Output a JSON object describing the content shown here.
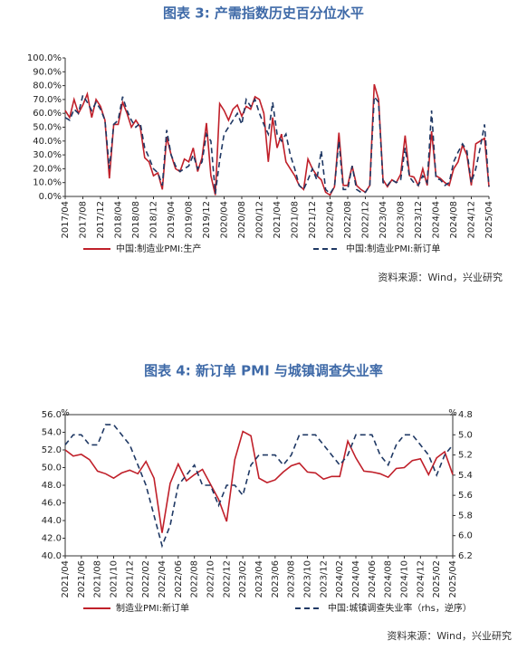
{
  "chart_data": [
    {
      "type": "line",
      "title": "图表 3:    产需指数历史百分位水平",
      "source": "资料来源：Wind，兴业研究",
      "legend": "bottom",
      "grid": false,
      "categories": [
        "2017/04",
        null,
        null,
        null,
        "2017/08",
        null,
        null,
        null,
        "2017/12",
        null,
        null,
        null,
        "2018/04",
        null,
        null,
        null,
        "2018/08",
        null,
        null,
        null,
        "2018/12",
        null,
        null,
        null,
        "2019/04",
        null,
        null,
        null,
        "2019/08",
        null,
        null,
        null,
        "2019/12",
        null,
        null,
        null,
        "2020/04",
        null,
        null,
        null,
        "2020/08",
        null,
        null,
        null,
        "2020/12",
        null,
        null,
        null,
        "2021/04",
        null,
        null,
        null,
        "2021/08",
        null,
        null,
        null,
        "2021/12",
        null,
        null,
        null,
        "2022/04",
        null,
        null,
        null,
        "2022/08",
        null,
        null,
        null,
        "2022/12",
        null,
        null,
        null,
        "2023/04",
        null,
        null,
        null,
        "2023/08",
        null,
        null,
        null,
        "2023/12",
        null,
        null,
        null,
        "2024/04",
        null,
        null,
        null,
        "2024/08",
        null,
        null,
        null,
        "2024/12",
        null,
        null,
        null,
        "2025/04"
      ],
      "ylim": [
        0,
        100
      ],
      "yticks": [
        {
          "value": 0,
          "label": "0.0%"
        },
        {
          "value": 10,
          "label": "10.0%"
        },
        {
          "value": 20,
          "label": "20.0%"
        },
        {
          "value": 30,
          "label": "30.0%"
        },
        {
          "value": 40,
          "label": "40.0%"
        },
        {
          "value": 50,
          "label": "50.0%"
        },
        {
          "value": 60,
          "label": "60.0%"
        },
        {
          "value": 70,
          "label": "70.0%"
        },
        {
          "value": 80,
          "label": "80.0%"
        },
        {
          "value": 90,
          "label": "90.0%"
        },
        {
          "value": 100,
          "label": "100.0%"
        }
      ],
      "series": [
        {
          "name": "中国:制造业PMI:生产",
          "color": "#c0202a",
          "dashed": false,
          "values": [
            62,
            57,
            70,
            60,
            66,
            74,
            57,
            70,
            65,
            55,
            13,
            52,
            52,
            68,
            60,
            50,
            55,
            50,
            28,
            25,
            15,
            17,
            5,
            43,
            30,
            20,
            18,
            27,
            25,
            35,
            18,
            28,
            53,
            15,
            1,
            67,
            62,
            55,
            63,
            66,
            58,
            65,
            63,
            72,
            70,
            60,
            25,
            57,
            35,
            45,
            25,
            20,
            15,
            8,
            5,
            27,
            20,
            15,
            12,
            3,
            1,
            7,
            46,
            8,
            8,
            22,
            8,
            5,
            3,
            8,
            81,
            70,
            12,
            7,
            12,
            10,
            16,
            44,
            15,
            14,
            8,
            20,
            8,
            47,
            15,
            13,
            10,
            8,
            20,
            25,
            37,
            30,
            8,
            38,
            40,
            42,
            7
          ]
        },
        {
          "name": "中国:制造业PMI:新订单",
          "color": "#1f3864",
          "dashed": true,
          "values": [
            57,
            55,
            63,
            60,
            73,
            68,
            62,
            68,
            63,
            55,
            20,
            52,
            55,
            72,
            62,
            55,
            50,
            53,
            35,
            28,
            20,
            17,
            8,
            48,
            30,
            22,
            18,
            20,
            22,
            30,
            20,
            25,
            45,
            40,
            2,
            26,
            45,
            50,
            55,
            60,
            52,
            70,
            65,
            70,
            60,
            52,
            45,
            68,
            45,
            40,
            45,
            30,
            20,
            8,
            5,
            12,
            20,
            12,
            33,
            5,
            2,
            7,
            40,
            5,
            5,
            22,
            5,
            3,
            3,
            8,
            72,
            68,
            10,
            8,
            12,
            10,
            12,
            35,
            14,
            10,
            8,
            15,
            10,
            62,
            13,
            12,
            8,
            10,
            25,
            32,
            38,
            33,
            10,
            20,
            35,
            52,
            7
          ]
        }
      ]
    },
    {
      "type": "line",
      "title": "图表 4:    新订单 PMI 与城镇调查失业率",
      "source": "资料来源：Wind，兴业研究",
      "legend": "bottom",
      "grid": false,
      "annotations": [
        "%",
        "%"
      ],
      "categories": [
        "2021/04",
        null,
        "2021/06",
        null,
        "2021/08",
        null,
        "2021/10",
        null,
        "2021/12",
        null,
        "2022/02",
        null,
        "2022/04",
        null,
        "2022/06",
        null,
        "2022/08",
        null,
        "2022/10",
        null,
        "2022/12",
        null,
        "2023/02",
        null,
        "2023/04",
        null,
        "2023/06",
        null,
        "2023/08",
        null,
        "2023/10",
        null,
        "2023/12",
        null,
        "2024/02",
        null,
        "2024/04",
        null,
        "2024/06",
        null,
        "2024/08",
        null,
        "2024/10",
        null,
        "2024/12",
        null,
        "2025/02",
        null,
        "2025/04"
      ],
      "ylim": [
        40,
        56
      ],
      "yticks": [
        {
          "value": 40,
          "label": "40.0"
        },
        {
          "value": 42,
          "label": "42.0"
        },
        {
          "value": 44,
          "label": "44.0"
        },
        {
          "value": 46,
          "label": "46.0"
        },
        {
          "value": 48,
          "label": "48.0"
        },
        {
          "value": 50,
          "label": "50.0"
        },
        {
          "value": 52,
          "label": "52.0"
        },
        {
          "value": 54,
          "label": "54.0"
        },
        {
          "value": 56,
          "label": "56.0"
        }
      ],
      "y2lim": [
        6.2,
        4.8
      ],
      "y2ticks": [
        4.8,
        {
          "value": 5,
          "label": "5.0"
        },
        5.2,
        5.4,
        5.6,
        5.8,
        {
          "value": 6,
          "label": "6.0"
        },
        6.2
      ],
      "series": [
        {
          "name": "制造业PMI:新订单",
          "color": "#c0202a",
          "dashed": false,
          "values": [
            52.0,
            51.3,
            51.5,
            50.9,
            49.6,
            49.3,
            48.8,
            49.4,
            49.7,
            49.3,
            50.7,
            48.8,
            42.6,
            48.2,
            50.4,
            48.5,
            49.2,
            49.8,
            48.1,
            46.4,
            43.9,
            50.9,
            54.1,
            53.6,
            48.8,
            48.3,
            48.6,
            49.5,
            50.2,
            50.5,
            49.5,
            49.4,
            48.7,
            49.0,
            49.0,
            53.0,
            51.1,
            49.6,
            49.5,
            49.3,
            48.9,
            49.9,
            50.0,
            50.8,
            51.0,
            49.2,
            51.1,
            51.8,
            49.2
          ]
        },
        {
          "name": "中国:城镇调查失业率（rhs，逆序）",
          "color": "#1f3864",
          "dashed": true,
          "axis": "y2",
          "values": [
            5.1,
            5.0,
            5.0,
            5.1,
            5.1,
            4.9,
            4.9,
            5.0,
            5.1,
            5.3,
            5.5,
            5.8,
            6.1,
            5.9,
            5.5,
            5.4,
            5.3,
            5.5,
            5.5,
            5.7,
            5.5,
            5.5,
            5.6,
            5.3,
            5.2,
            5.2,
            5.2,
            5.3,
            5.2,
            5.0,
            5.0,
            5.0,
            5.1,
            5.2,
            5.3,
            5.2,
            5.0,
            5.0,
            5.0,
            5.2,
            5.3,
            5.1,
            5.0,
            5.0,
            5.1,
            5.2,
            5.4,
            5.2,
            5.1
          ]
        }
      ]
    }
  ]
}
